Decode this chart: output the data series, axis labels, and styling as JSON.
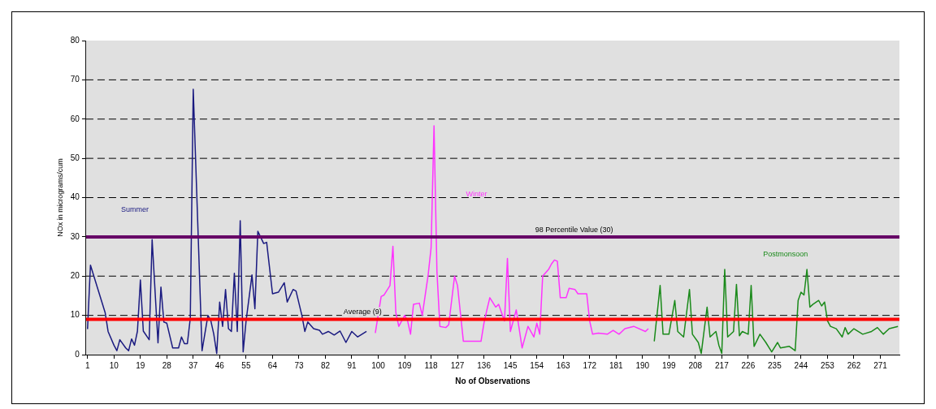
{
  "chart_data": {
    "type": "line",
    "xlabel": "No of Observations",
    "ylabel": "NOx in micrograms/cum",
    "xlim": [
      0.5,
      277.5
    ],
    "xticks": [
      1,
      10,
      19,
      28,
      37,
      46,
      55,
      64,
      73,
      82,
      91,
      100,
      109,
      118,
      127,
      136,
      145,
      154,
      163,
      172,
      181,
      190,
      199,
      208,
      217,
      226,
      235,
      244,
      253,
      262,
      271
    ],
    "ylim": [
      0,
      80
    ],
    "yticks": [
      0,
      10,
      20,
      30,
      40,
      50,
      60,
      70,
      80
    ],
    "grid": "y",
    "legend": false,
    "marker": "none",
    "line_style": "solid",
    "series": [
      {
        "name": "Summer",
        "color": "#1a1a80",
        "x": [
          1,
          2,
          7,
          8,
          10,
          11,
          12,
          14,
          15,
          16,
          17,
          18,
          19,
          20,
          22,
          23,
          25,
          26,
          27,
          28,
          30,
          32,
          33,
          34,
          35,
          36,
          37,
          40,
          42,
          43,
          44,
          45,
          46,
          47,
          48,
          49,
          50,
          51,
          52,
          53,
          54,
          55,
          57,
          58,
          59,
          61,
          62,
          64,
          66,
          68,
          69,
          71,
          72,
          74,
          75,
          76,
          78,
          80,
          81,
          83,
          85,
          87,
          89,
          91,
          93,
          96
        ],
        "values": [
          6.5,
          22.8,
          10.7,
          5.9,
          2.4,
          1,
          3.8,
          1.7,
          1,
          4,
          2.4,
          6,
          19,
          6,
          3.8,
          29.3,
          3,
          17.2,
          8.3,
          8,
          1.7,
          1.7,
          4.5,
          2.8,
          2.8,
          9.3,
          67.6,
          1,
          10,
          8.6,
          5.2,
          0.3,
          13.4,
          7.2,
          16.6,
          6.6,
          5.9,
          20.7,
          5.9,
          34.1,
          0.7,
          8.6,
          20.3,
          11.7,
          31.4,
          28.3,
          28.6,
          15.5,
          15.9,
          18.3,
          13.4,
          16.6,
          16.2,
          10,
          5.9,
          8.3,
          6.6,
          6.2,
          5.2,
          5.9,
          5,
          6,
          3.1,
          5.9,
          4.5,
          5.9
        ]
      },
      {
        "name": "Winter",
        "color": "#ff33ff",
        "x": [
          99,
          101,
          102,
          104,
          105,
          106,
          107,
          109,
          110,
          111,
          112,
          114,
          115,
          117,
          118,
          119,
          120,
          121,
          123,
          124,
          126,
          127,
          129,
          132,
          135,
          136,
          137,
          138,
          140,
          141,
          143,
          144,
          145,
          147,
          148,
          149,
          151,
          153,
          154,
          155,
          156,
          158,
          159,
          160,
          161,
          162,
          164,
          165,
          167,
          168,
          171,
          172,
          173,
          175,
          178,
          180,
          182,
          184,
          187,
          191,
          192
        ],
        "values": [
          5.5,
          14.8,
          15.2,
          17.6,
          27.6,
          10.7,
          7.2,
          10,
          8.6,
          5.2,
          12.8,
          13.1,
          10,
          20.3,
          27.2,
          58.3,
          21,
          7.2,
          6.9,
          7.6,
          20,
          17.6,
          3.4,
          3.4,
          3.4,
          8,
          11.4,
          14.5,
          12.1,
          12.8,
          8.6,
          24.5,
          5.9,
          11.4,
          6.6,
          1.7,
          7.2,
          4.5,
          8,
          5.2,
          20,
          21.7,
          23.1,
          24.1,
          23.8,
          14.5,
          14.5,
          16.9,
          16.6,
          15.5,
          15.5,
          8.6,
          5.2,
          5.5,
          5.2,
          6.2,
          5.2,
          6.6,
          7.2,
          5.9,
          6.6
        ]
      },
      {
        "name": "Postmonsoon",
        "color": "#1a8a1a",
        "x": [
          194,
          196,
          197,
          199,
          201,
          202,
          204,
          206,
          207,
          209,
          210,
          212,
          213,
          215,
          216,
          217,
          218,
          219,
          221,
          222,
          223,
          224,
          226,
          227,
          228,
          230,
          232,
          234,
          236,
          237,
          240,
          242,
          243,
          244,
          245,
          246,
          247,
          248,
          250,
          251,
          252,
          253,
          254,
          256,
          258,
          259,
          260,
          262,
          265,
          268,
          270,
          272,
          274,
          277
        ],
        "values": [
          3.4,
          17.6,
          5.2,
          5.2,
          13.8,
          5.9,
          4.5,
          16.6,
          5.2,
          3.1,
          0.3,
          12.1,
          4.5,
          5.9,
          2.4,
          0.3,
          21.7,
          4.5,
          5.9,
          17.9,
          4.8,
          5.9,
          5.2,
          17.6,
          2.1,
          5.2,
          3.1,
          0.7,
          3.1,
          1.7,
          2.1,
          1,
          13.8,
          15.9,
          15.2,
          21.7,
          12.1,
          12.8,
          13.8,
          12.4,
          13.4,
          8.6,
          7.2,
          6.6,
          4.5,
          6.9,
          5.2,
          6.6,
          5.2,
          5.9,
          6.9,
          5.2,
          6.6,
          7.2
        ]
      }
    ],
    "ref_lines": [
      {
        "axis": "y",
        "value": 30,
        "label": "98 Percentile Value (30)",
        "color": "#660066"
      },
      {
        "axis": "y",
        "value": 9,
        "label": "Average (9)",
        "color": "#ff0000"
      }
    ]
  }
}
